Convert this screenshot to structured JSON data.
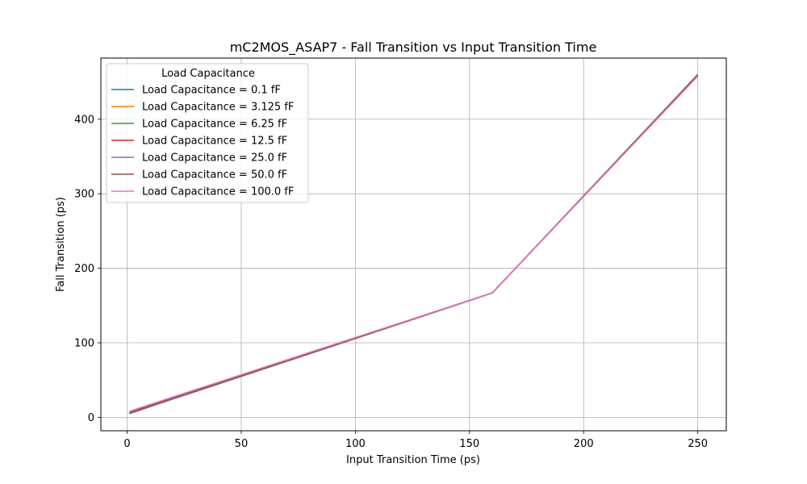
{
  "chart_data": {
    "type": "line",
    "title": "mC2MOS_ASAP7 - Fall Transition vs Input Transition Time",
    "xlabel": "Input Transition Time (ps)",
    "ylabel": "Fall Transition (ps)",
    "xlim": [
      -11.5,
      262.5
    ],
    "ylim": [
      -18,
      482
    ],
    "xticks": [
      0,
      50,
      100,
      150,
      200,
      250
    ],
    "yticks": [
      0,
      100,
      200,
      300,
      400
    ],
    "grid": true,
    "legend": {
      "title": "Load Capacitance",
      "placement": "top-left"
    },
    "x": [
      1,
      5,
      10,
      20,
      40,
      80,
      160,
      250
    ],
    "series": [
      {
        "name": "Load Capacitance = 0.1 fF",
        "color": "#1f77b4",
        "values": [
          5.0,
          9.1,
          14.3,
          24.5,
          44.8,
          85.4,
          166.8,
          460.0
        ]
      },
      {
        "name": "Load Capacitance = 3.125 fF",
        "color": "#ff7f0e",
        "values": [
          5.1,
          9.2,
          14.4,
          24.6,
          44.9,
          85.5,
          166.8,
          459.8
        ]
      },
      {
        "name": "Load Capacitance = 6.25 fF",
        "color": "#2ca02c",
        "values": [
          5.2,
          9.3,
          14.5,
          24.7,
          45.0,
          85.6,
          166.9,
          459.7
        ]
      },
      {
        "name": "Load Capacitance = 12.5 fF",
        "color": "#d62728",
        "values": [
          5.4,
          9.5,
          14.7,
          24.9,
          45.2,
          85.7,
          167.0,
          459.5
        ]
      },
      {
        "name": "Load Capacitance = 25.0 fF",
        "color": "#9467bd",
        "values": [
          5.8,
          9.9,
          15.1,
          25.2,
          45.5,
          85.9,
          167.1,
          459.2
        ]
      },
      {
        "name": "Load Capacitance = 50.0 fF",
        "color": "#8c564b",
        "values": [
          6.6,
          10.7,
          15.8,
          25.9,
          46.1,
          86.4,
          167.2,
          458.6
        ]
      },
      {
        "name": "Load Capacitance = 100.0 fF",
        "color": "#e377c2",
        "values": [
          8.1,
          12.2,
          17.3,
          27.3,
          47.3,
          87.3,
          167.0,
          457.5
        ]
      }
    ]
  }
}
